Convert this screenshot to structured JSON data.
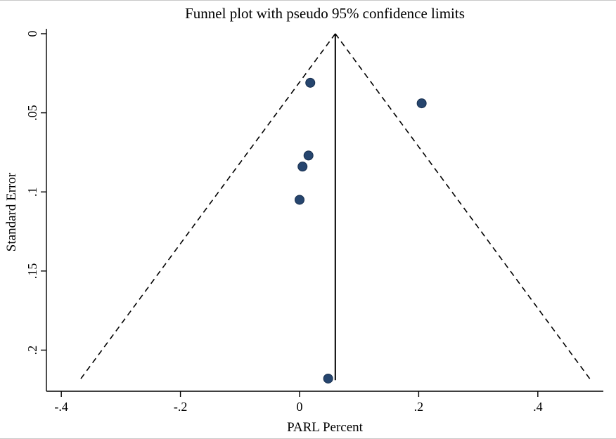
{
  "chart_data": {
    "type": "scatter",
    "title": "Funnel plot with pseudo 95% confidence limits",
    "xlabel": "PARL Percent",
    "ylabel": "Standard Error",
    "xlim": [
      -0.425,
      0.51
    ],
    "ylim": [
      0,
      0.226
    ],
    "y_axis_direction": "inverted (standard error increases downward)",
    "x_ticks": [
      -0.4,
      -0.2,
      0,
      0.2,
      0.4
    ],
    "x_tick_labels": [
      "-.4",
      "-.2",
      "0",
      ".2",
      ".4"
    ],
    "y_ticks": [
      0,
      0.05,
      0.1,
      0.15,
      0.2
    ],
    "y_tick_labels": [
      "0",
      ".05",
      ".1",
      ".15",
      ".2"
    ],
    "pooled_estimate": 0.06,
    "funnel": {
      "apex_x": 0.06,
      "apex_se": 0,
      "bottom_se": 0.219,
      "left_x_at_bottom": -0.369,
      "right_x_at_bottom": 0.489
    },
    "points": [
      {
        "x": 0.018,
        "se": 0.031
      },
      {
        "x": 0.205,
        "se": 0.044
      },
      {
        "x": 0.015,
        "se": 0.077
      },
      {
        "x": 0.005,
        "se": 0.084
      },
      {
        "x": 0.0,
        "se": 0.105
      },
      {
        "x": 0.048,
        "se": 0.218
      }
    ],
    "colors": {
      "point_fill": "#26456e",
      "point_stroke": "#182f4e",
      "line": "#000000",
      "text": "#000000",
      "background": "#ffffff"
    },
    "grid": "off",
    "legend": "none"
  }
}
